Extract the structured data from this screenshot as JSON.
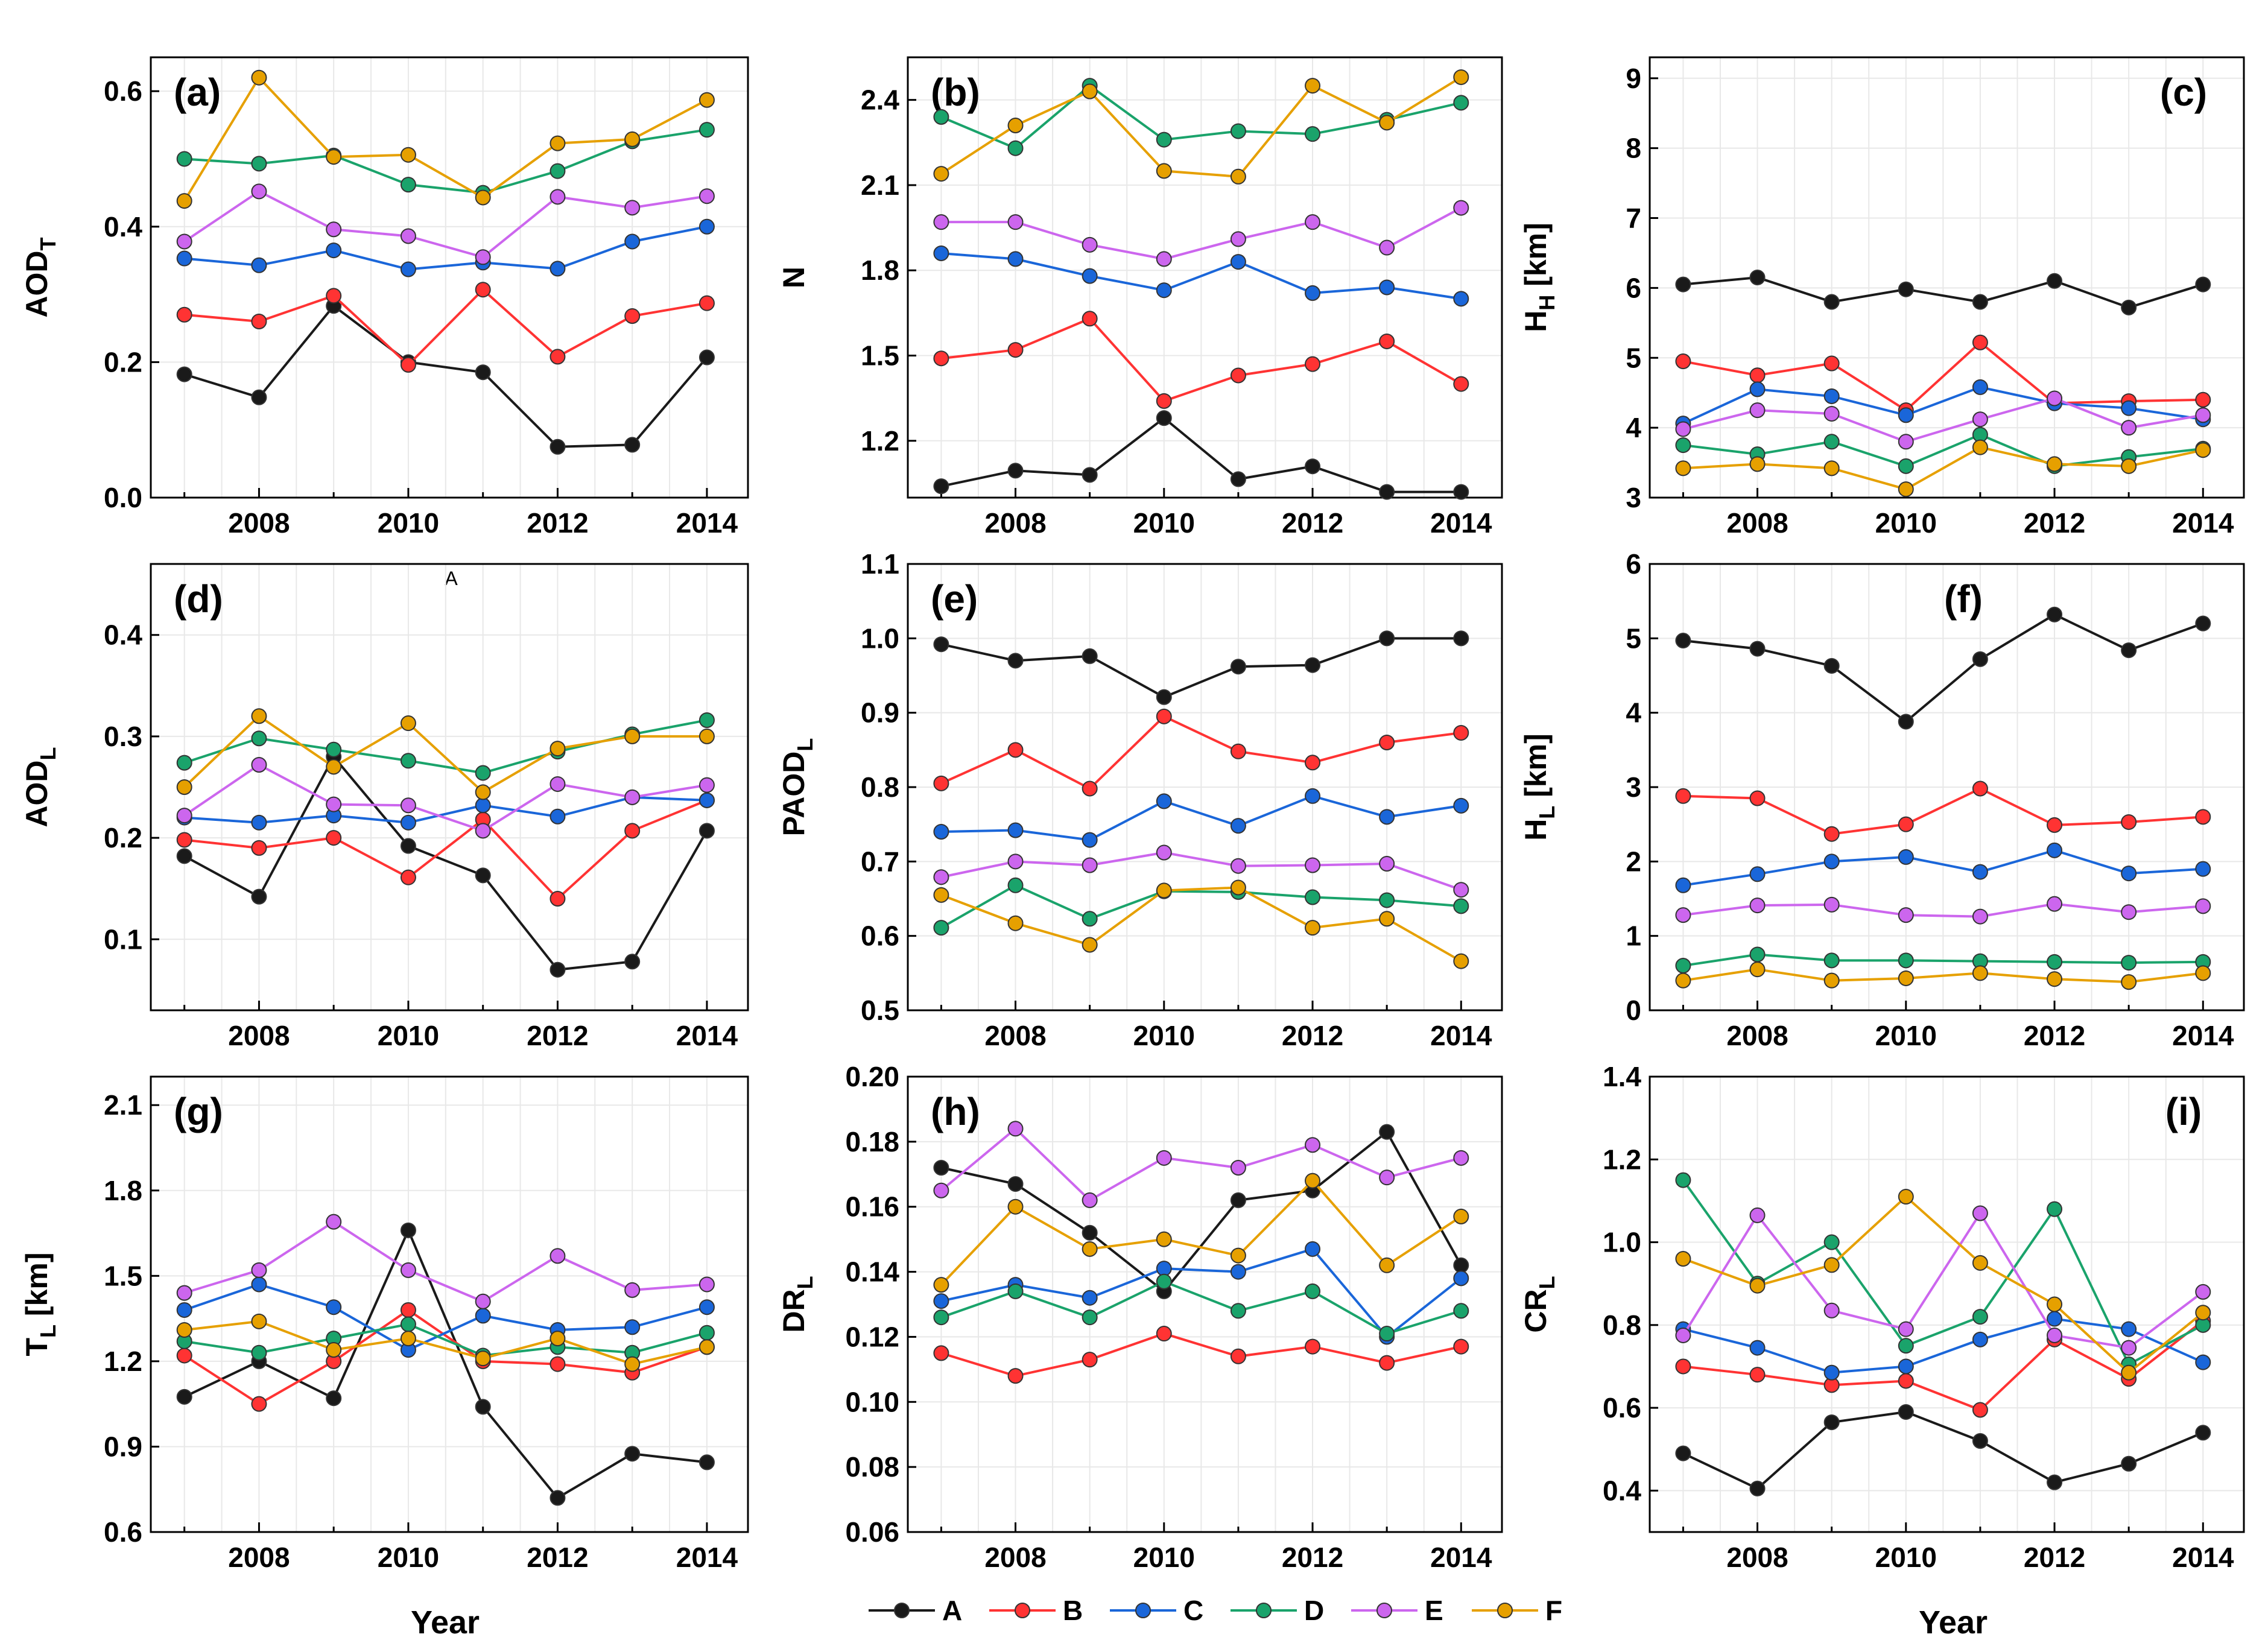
{
  "colors": {
    "A": "#1a1a1a",
    "B": "#ff3333",
    "C": "#1a66d9",
    "D": "#1aa36b",
    "E": "#cc66ee",
    "F": "#e6a000"
  },
  "legend": {
    "series": [
      "A",
      "B",
      "C",
      "D",
      "E",
      "F"
    ]
  },
  "xlabel_bottom": "Year",
  "stray_mark": "A",
  "chart_data": [
    {
      "id": "a",
      "type": "line",
      "panel_label": "(a)",
      "ylabel_main": "AOD",
      "ylabel_sub": "T",
      "ylim": [
        0.0,
        0.65
      ],
      "yticks": [
        {
          "v": 0.0,
          "t": "0.0"
        },
        {
          "v": 0.2,
          "t": "0.2"
        },
        {
          "v": 0.4,
          "t": "0.4"
        },
        {
          "v": 0.6,
          "t": "0.6"
        }
      ],
      "x": [
        2007,
        2008,
        2009,
        2010,
        2011,
        2012,
        2013,
        2014
      ],
      "series": [
        {
          "name": "A",
          "values": [
            0.182,
            0.148,
            0.283,
            0.2,
            0.185,
            0.075,
            0.078,
            0.207
          ]
        },
        {
          "name": "B",
          "values": [
            0.27,
            0.26,
            0.298,
            0.196,
            0.307,
            0.208,
            0.268,
            0.287
          ]
        },
        {
          "name": "C",
          "values": [
            0.353,
            0.343,
            0.365,
            0.337,
            0.347,
            0.338,
            0.378,
            0.4
          ]
        },
        {
          "name": "D",
          "values": [
            0.5,
            0.493,
            0.505,
            0.462,
            0.45,
            0.482,
            0.526,
            0.543
          ]
        },
        {
          "name": "E",
          "values": [
            0.378,
            0.452,
            0.396,
            0.386,
            0.355,
            0.444,
            0.428,
            0.445
          ]
        },
        {
          "name": "F",
          "values": [
            0.438,
            0.62,
            0.503,
            0.506,
            0.443,
            0.523,
            0.529,
            0.587
          ]
        }
      ]
    },
    {
      "id": "b",
      "type": "line",
      "panel_label": "(b)",
      "ylabel_main": "N",
      "ylabel_sub": "",
      "ylim": [
        1.0,
        2.55
      ],
      "yticks": [
        {
          "v": 1.2,
          "t": "1.2"
        },
        {
          "v": 1.5,
          "t": "1.5"
        },
        {
          "v": 1.8,
          "t": "1.8"
        },
        {
          "v": 2.1,
          "t": "2.1"
        },
        {
          "v": 2.4,
          "t": "2.4"
        }
      ],
      "x": [
        2007,
        2008,
        2009,
        2010,
        2011,
        2012,
        2013,
        2014
      ],
      "series": [
        {
          "name": "A",
          "values": [
            1.04,
            1.095,
            1.08,
            1.28,
            1.065,
            1.11,
            1.02,
            1.02
          ]
        },
        {
          "name": "B",
          "values": [
            1.49,
            1.52,
            1.63,
            1.34,
            1.43,
            1.47,
            1.55,
            1.4
          ]
        },
        {
          "name": "C",
          "values": [
            1.86,
            1.84,
            1.78,
            1.73,
            1.83,
            1.72,
            1.74,
            1.7
          ]
        },
        {
          "name": "D",
          "values": [
            2.34,
            2.23,
            2.45,
            2.26,
            2.29,
            2.28,
            2.33,
            2.39
          ]
        },
        {
          "name": "E",
          "values": [
            1.97,
            1.97,
            1.89,
            1.84,
            1.91,
            1.97,
            1.88,
            2.02
          ]
        },
        {
          "name": "F",
          "values": [
            2.14,
            2.31,
            2.43,
            2.15,
            2.13,
            2.45,
            2.32,
            2.48
          ]
        }
      ]
    },
    {
      "id": "c",
      "type": "line",
      "panel_label": "(c)",
      "ylabel_main": "H",
      "ylabel_sub": "H",
      "ylabel_tail": " [km]",
      "ylim": [
        3,
        9.3
      ],
      "yticks": [
        {
          "v": 3,
          "t": "3"
        },
        {
          "v": 4,
          "t": "4"
        },
        {
          "v": 5,
          "t": "5"
        },
        {
          "v": 6,
          "t": "6"
        },
        {
          "v": 7,
          "t": "7"
        },
        {
          "v": 8,
          "t": "8"
        },
        {
          "v": 9,
          "t": "9"
        }
      ],
      "x": [
        2007,
        2008,
        2009,
        2010,
        2011,
        2012,
        2013,
        2014
      ],
      "series": [
        {
          "name": "A",
          "values": [
            6.05,
            6.15,
            5.8,
            5.98,
            5.8,
            6.1,
            5.72,
            6.05
          ]
        },
        {
          "name": "B",
          "values": [
            4.95,
            4.75,
            4.92,
            4.25,
            5.22,
            4.35,
            4.38,
            4.4
          ]
        },
        {
          "name": "C",
          "values": [
            4.06,
            4.55,
            4.45,
            4.18,
            4.58,
            4.35,
            4.28,
            4.12
          ]
        },
        {
          "name": "D",
          "values": [
            3.75,
            3.62,
            3.8,
            3.45,
            3.9,
            3.45,
            3.58,
            3.7
          ]
        },
        {
          "name": "E",
          "values": [
            3.98,
            4.25,
            4.2,
            3.8,
            4.12,
            4.42,
            4.0,
            4.18
          ]
        },
        {
          "name": "F",
          "values": [
            3.42,
            3.48,
            3.42,
            3.12,
            3.72,
            3.48,
            3.45,
            3.68
          ]
        }
      ]
    },
    {
      "id": "d",
      "type": "line",
      "panel_label": "(d)",
      "ylabel_main": "AOD",
      "ylabel_sub": "L",
      "ylim": [
        0.03,
        0.47
      ],
      "yticks": [
        {
          "v": 0.1,
          "t": "0.1"
        },
        {
          "v": 0.2,
          "t": "0.2"
        },
        {
          "v": 0.3,
          "t": "0.3"
        },
        {
          "v": 0.4,
          "t": "0.4"
        }
      ],
      "x": [
        2007,
        2008,
        2009,
        2010,
        2011,
        2012,
        2013,
        2014
      ],
      "series": [
        {
          "name": "A",
          "values": [
            0.182,
            0.142,
            0.28,
            0.192,
            0.163,
            0.07,
            0.078,
            0.207
          ]
        },
        {
          "name": "B",
          "values": [
            0.198,
            0.19,
            0.2,
            0.161,
            0.218,
            0.14,
            0.207,
            0.237
          ]
        },
        {
          "name": "C",
          "values": [
            0.22,
            0.215,
            0.222,
            0.215,
            0.232,
            0.221,
            0.24,
            0.237
          ]
        },
        {
          "name": "D",
          "values": [
            0.274,
            0.298,
            0.287,
            0.276,
            0.264,
            0.285,
            0.302,
            0.316
          ]
        },
        {
          "name": "E",
          "values": [
            0.222,
            0.272,
            0.233,
            0.232,
            0.207,
            0.253,
            0.24,
            0.252
          ]
        },
        {
          "name": "F",
          "values": [
            0.25,
            0.32,
            0.27,
            0.313,
            0.245,
            0.288,
            0.3,
            0.3
          ]
        }
      ]
    },
    {
      "id": "e",
      "type": "line",
      "panel_label": "(e)",
      "ylabel_main": "PAOD",
      "ylabel_sub": "L",
      "ylim": [
        0.5,
        1.1
      ],
      "yticks": [
        {
          "v": 0.5,
          "t": "0.5"
        },
        {
          "v": 0.6,
          "t": "0.6"
        },
        {
          "v": 0.7,
          "t": "0.7"
        },
        {
          "v": 0.8,
          "t": "0.8"
        },
        {
          "v": 0.9,
          "t": "0.9"
        },
        {
          "v": 1.0,
          "t": "1.0"
        },
        {
          "v": 1.1,
          "t": "1.1"
        }
      ],
      "x": [
        2007,
        2008,
        2009,
        2010,
        2011,
        2012,
        2013,
        2014
      ],
      "series": [
        {
          "name": "A",
          "values": [
            0.992,
            0.97,
            0.976,
            0.921,
            0.962,
            0.964,
            1.0,
            1.0
          ]
        },
        {
          "name": "B",
          "values": [
            0.805,
            0.85,
            0.798,
            0.895,
            0.848,
            0.833,
            0.86,
            0.873
          ]
        },
        {
          "name": "C",
          "values": [
            0.74,
            0.742,
            0.729,
            0.781,
            0.748,
            0.788,
            0.76,
            0.775
          ]
        },
        {
          "name": "D",
          "values": [
            0.611,
            0.668,
            0.623,
            0.66,
            0.659,
            0.652,
            0.648,
            0.64
          ]
        },
        {
          "name": "E",
          "values": [
            0.679,
            0.7,
            0.695,
            0.712,
            0.694,
            0.695,
            0.697,
            0.662
          ]
        },
        {
          "name": "F",
          "values": [
            0.655,
            0.617,
            0.588,
            0.661,
            0.665,
            0.611,
            0.623,
            0.566
          ]
        }
      ]
    },
    {
      "id": "f",
      "type": "line",
      "panel_label": "(f)",
      "ylabel_main": "H",
      "ylabel_sub": "L",
      "ylabel_tail": " [km]",
      "ylim": [
        0,
        6
      ],
      "yticks": [
        {
          "v": 0,
          "t": "0"
        },
        {
          "v": 1,
          "t": "1"
        },
        {
          "v": 2,
          "t": "2"
        },
        {
          "v": 3,
          "t": "3"
        },
        {
          "v": 4,
          "t": "4"
        },
        {
          "v": 5,
          "t": "5"
        },
        {
          "v": 6,
          "t": "6"
        }
      ],
      "x": [
        2007,
        2008,
        2009,
        2010,
        2011,
        2012,
        2013,
        2014
      ],
      "series": [
        {
          "name": "A",
          "values": [
            4.97,
            4.86,
            4.63,
            3.88,
            4.72,
            5.32,
            4.84,
            5.2
          ]
        },
        {
          "name": "B",
          "values": [
            2.88,
            2.85,
            2.37,
            2.5,
            2.98,
            2.49,
            2.53,
            2.6
          ]
        },
        {
          "name": "C",
          "values": [
            1.68,
            1.83,
            2.0,
            2.06,
            1.86,
            2.15,
            1.84,
            1.9
          ]
        },
        {
          "name": "D",
          "values": [
            0.6,
            0.75,
            0.67,
            0.67,
            0.66,
            0.65,
            0.64,
            0.65
          ]
        },
        {
          "name": "E",
          "values": [
            1.28,
            1.41,
            1.42,
            1.28,
            1.26,
            1.43,
            1.32,
            1.4
          ]
        },
        {
          "name": "F",
          "values": [
            0.4,
            0.55,
            0.4,
            0.43,
            0.5,
            0.42,
            0.38,
            0.5
          ]
        }
      ]
    },
    {
      "id": "g",
      "type": "line",
      "panel_label": "(g)",
      "ylabel_main": "T",
      "ylabel_sub": "L",
      "ylabel_tail": " [km]",
      "ylim": [
        0.6,
        2.2
      ],
      "yticks": [
        {
          "v": 0.6,
          "t": "0.6"
        },
        {
          "v": 0.9,
          "t": "0.9"
        },
        {
          "v": 1.2,
          "t": "1.2"
        },
        {
          "v": 1.5,
          "t": "1.5"
        },
        {
          "v": 1.8,
          "t": "1.8"
        },
        {
          "v": 2.1,
          "t": "2.1"
        }
      ],
      "x": [
        2007,
        2008,
        2009,
        2010,
        2011,
        2012,
        2013,
        2014
      ],
      "series": [
        {
          "name": "A",
          "values": [
            1.075,
            1.2,
            1.07,
            1.66,
            1.04,
            0.72,
            0.875,
            0.845
          ]
        },
        {
          "name": "B",
          "values": [
            1.22,
            1.05,
            1.2,
            1.38,
            1.2,
            1.19,
            1.16,
            1.25
          ]
        },
        {
          "name": "C",
          "values": [
            1.38,
            1.47,
            1.39,
            1.24,
            1.36,
            1.31,
            1.32,
            1.39
          ]
        },
        {
          "name": "D",
          "values": [
            1.27,
            1.23,
            1.28,
            1.33,
            1.22,
            1.25,
            1.23,
            1.3
          ]
        },
        {
          "name": "E",
          "values": [
            1.44,
            1.52,
            1.69,
            1.52,
            1.41,
            1.57,
            1.45,
            1.47
          ]
        },
        {
          "name": "F",
          "values": [
            1.31,
            1.34,
            1.24,
            1.28,
            1.21,
            1.28,
            1.19,
            1.25
          ]
        }
      ]
    },
    {
      "id": "h",
      "type": "line",
      "panel_label": "(h)",
      "ylabel_main": "DR",
      "ylabel_sub": "L",
      "ylim": [
        0.06,
        0.2
      ],
      "yticks": [
        {
          "v": 0.06,
          "t": "0.06"
        },
        {
          "v": 0.08,
          "t": "0.08"
        },
        {
          "v": 0.1,
          "t": "0.10"
        },
        {
          "v": 0.12,
          "t": "0.12"
        },
        {
          "v": 0.14,
          "t": "0.14"
        },
        {
          "v": 0.16,
          "t": "0.16"
        },
        {
          "v": 0.18,
          "t": "0.18"
        },
        {
          "v": 0.2,
          "t": "0.20"
        }
      ],
      "x": [
        2007,
        2008,
        2009,
        2010,
        2011,
        2012,
        2013,
        2014
      ],
      "series": [
        {
          "name": "A",
          "values": [
            0.172,
            0.167,
            0.152,
            0.134,
            0.162,
            0.165,
            0.183,
            0.142
          ]
        },
        {
          "name": "B",
          "values": [
            0.115,
            0.108,
            0.113,
            0.121,
            0.114,
            0.117,
            0.112,
            0.117
          ]
        },
        {
          "name": "C",
          "values": [
            0.131,
            0.136,
            0.132,
            0.141,
            0.14,
            0.147,
            0.12,
            0.138
          ]
        },
        {
          "name": "D",
          "values": [
            0.126,
            0.134,
            0.126,
            0.137,
            0.128,
            0.134,
            0.121,
            0.128
          ]
        },
        {
          "name": "E",
          "values": [
            0.165,
            0.184,
            0.162,
            0.175,
            0.172,
            0.179,
            0.169,
            0.175
          ]
        },
        {
          "name": "F",
          "values": [
            0.136,
            0.16,
            0.147,
            0.15,
            0.145,
            0.168,
            0.142,
            0.157
          ]
        }
      ]
    },
    {
      "id": "i",
      "type": "line",
      "panel_label": "(i)",
      "ylabel_main": "CR",
      "ylabel_sub": "L",
      "ylim": [
        0.3,
        1.4
      ],
      "yticks": [
        {
          "v": 0.4,
          "t": "0.4"
        },
        {
          "v": 0.6,
          "t": "0.6"
        },
        {
          "v": 0.8,
          "t": "0.8"
        },
        {
          "v": 1.0,
          "t": "1.0"
        },
        {
          "v": 1.2,
          "t": "1.2"
        },
        {
          "v": 1.4,
          "t": "1.4"
        }
      ],
      "x": [
        2007,
        2008,
        2009,
        2010,
        2011,
        2012,
        2013,
        2014
      ],
      "series": [
        {
          "name": "A",
          "values": [
            0.49,
            0.405,
            0.565,
            0.59,
            0.52,
            0.42,
            0.465,
            0.54
          ]
        },
        {
          "name": "B",
          "values": [
            0.7,
            0.68,
            0.655,
            0.665,
            0.595,
            0.765,
            0.67,
            0.81
          ]
        },
        {
          "name": "C",
          "values": [
            0.79,
            0.745,
            0.685,
            0.7,
            0.765,
            0.815,
            0.79,
            0.71
          ]
        },
        {
          "name": "D",
          "values": [
            1.15,
            0.9,
            1.0,
            0.75,
            0.82,
            1.08,
            0.705,
            0.8
          ]
        },
        {
          "name": "E",
          "values": [
            0.775,
            1.065,
            0.835,
            0.79,
            1.07,
            0.775,
            0.745,
            0.88
          ]
        },
        {
          "name": "F",
          "values": [
            0.96,
            0.895,
            0.945,
            1.11,
            0.95,
            0.85,
            0.685,
            0.83
          ]
        }
      ]
    }
  ]
}
